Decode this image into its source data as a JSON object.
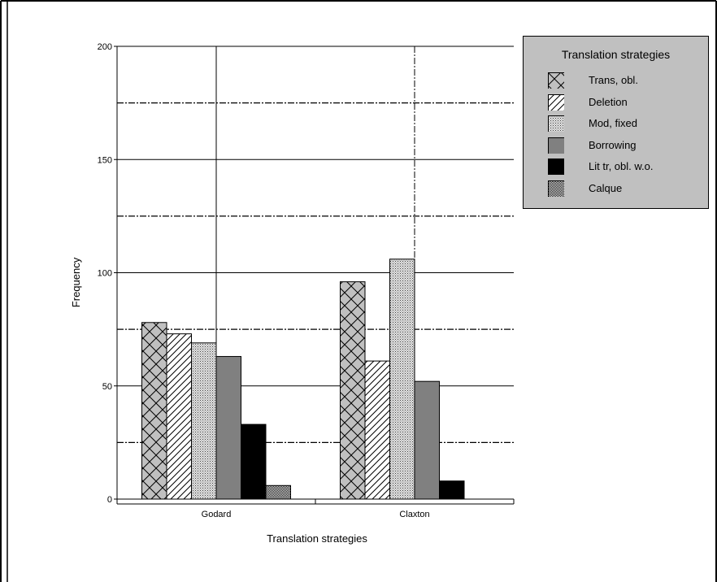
{
  "chart_data": {
    "type": "bar",
    "categories": [
      "Godard",
      "Claxton"
    ],
    "series": [
      {
        "name": "Trans, obl.",
        "values": [
          78,
          96
        ],
        "pattern": "crosshatch"
      },
      {
        "name": "Deletion",
        "values": [
          73,
          61
        ],
        "pattern": "diagonal"
      },
      {
        "name": "Mod, fixed",
        "values": [
          69,
          106
        ],
        "pattern": "dots"
      },
      {
        "name": "Borrowing",
        "values": [
          63,
          52
        ],
        "pattern": "solid-gray"
      },
      {
        "name": "Lit tr, obl. w.o.",
        "values": [
          33,
          8
        ],
        "pattern": "solid-black"
      },
      {
        "name": "Calque",
        "values": [
          6,
          0
        ],
        "pattern": "fine-check"
      }
    ],
    "xlabel": "Translation strategies",
    "ylabel": "Frequency",
    "ylim": [
      0,
      200
    ],
    "yticks": [
      "0",
      "50",
      "100",
      "150",
      "200"
    ],
    "grid": true,
    "legend": {
      "title": "Translation strategies",
      "placement": "top-right"
    },
    "colors": {
      "legend_bg": "#c0c0c0",
      "borrowing": "#808080",
      "lit": "#000000"
    }
  }
}
